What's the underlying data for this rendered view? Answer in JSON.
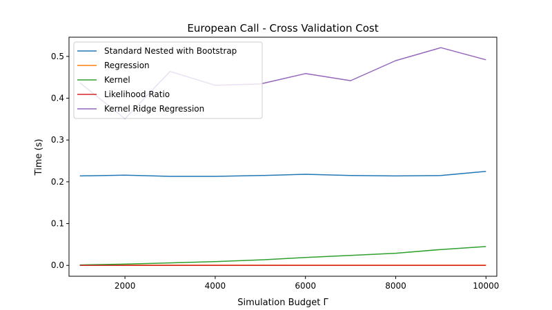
{
  "chart_data": {
    "type": "line",
    "title": "European Call - Cross Validation Cost",
    "xlabel": "Simulation Budget Γ",
    "ylabel": "Time (s)",
    "xlim": [
      760,
      10240
    ],
    "ylim": [
      -0.026,
      0.546
    ],
    "grid": false,
    "legend_position": "top-left",
    "x_ticks": [
      2000,
      4000,
      6000,
      8000,
      10000
    ],
    "x_tick_labels": [
      "2000",
      "4000",
      "6000",
      "8000",
      "10000"
    ],
    "y_ticks": [
      0.0,
      0.1,
      0.2,
      0.3,
      0.4,
      0.5
    ],
    "y_tick_labels": [
      "0.0",
      "0.1",
      "0.2",
      "0.3",
      "0.4",
      "0.5"
    ],
    "x": [
      1000,
      2000,
      3000,
      4000,
      5000,
      6000,
      7000,
      8000,
      9000,
      10000
    ],
    "series": [
      {
        "name": "Standard Nested with Bootstrap",
        "color": "#1f77b4",
        "values": [
          0.214,
          0.216,
          0.213,
          0.213,
          0.215,
          0.218,
          0.215,
          0.214,
          0.215,
          0.225
        ]
      },
      {
        "name": "Regression",
        "color": "#ff7f0e",
        "values": [
          0.0005,
          0.0005,
          0.0005,
          0.0005,
          0.0005,
          0.0005,
          0.0005,
          0.0005,
          0.0005,
          0.0005
        ]
      },
      {
        "name": "Kernel",
        "color": "#2ca02c",
        "values": [
          0.001,
          0.003,
          0.006,
          0.009,
          0.013,
          0.019,
          0.024,
          0.029,
          0.038,
          0.045
        ]
      },
      {
        "name": "Likelihood Ratio",
        "color": "#d62728",
        "values": [
          0.0,
          0.0,
          0.0,
          0.0,
          0.0,
          0.0,
          0.0,
          0.0,
          0.0,
          0.0
        ]
      },
      {
        "name": "Kernel Ridge Regression",
        "color": "#9467bd",
        "values": [
          0.437,
          0.351,
          0.464,
          0.431,
          0.434,
          0.459,
          0.442,
          0.49,
          0.521,
          0.492
        ]
      }
    ]
  }
}
